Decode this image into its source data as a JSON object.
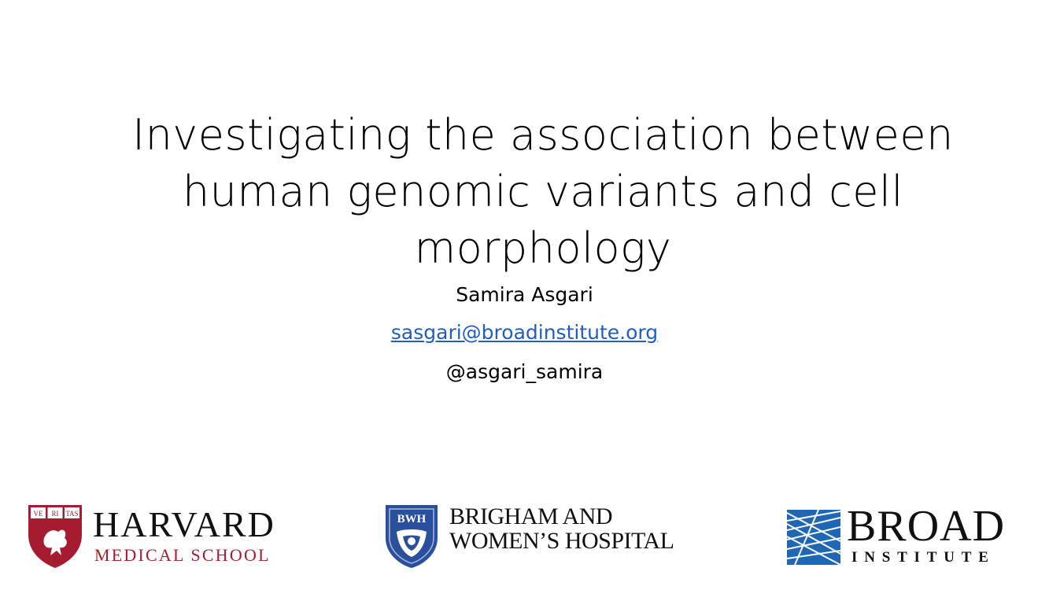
{
  "slide": {
    "title_lines": [
      "Investigating the association between",
      "human genomic variants and cell",
      "morphology"
    ],
    "author_name": "Samira Asgari",
    "author_email": "sasgari@broadinstitute.org",
    "author_handle": "@asgari_samira"
  },
  "logos": {
    "harvard": {
      "name": "HARVARD",
      "sub": "MEDICAL SCHOOL",
      "shield_text": [
        "VE",
        "RI",
        "TAS"
      ],
      "color": "#a51c30"
    },
    "bwh": {
      "line1": "BRIGHAM AND",
      "line2": "WOMEN’S HOSPITAL",
      "shield_text": "BWH",
      "color": "#2a4f9c"
    },
    "broad": {
      "name": "BROAD",
      "sub": "INSTITUTE",
      "color": "#1f66b3"
    }
  }
}
